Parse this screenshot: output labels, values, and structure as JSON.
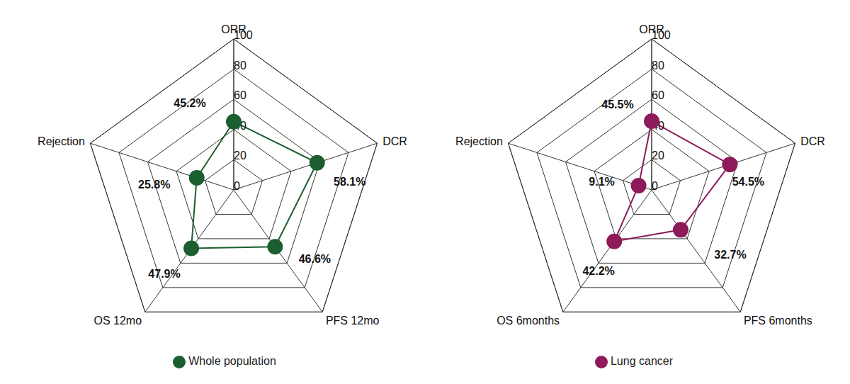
{
  "chart_data": [
    {
      "type": "radar",
      "categories": [
        "ORR",
        "DCR",
        "PFS 12mo",
        "OS 12mo",
        "Rejection"
      ],
      "series": [
        {
          "name": "Whole population",
          "color": "#1b5e2f",
          "values": [
            45.2,
            58.1,
            46.6,
            47.9,
            25.8
          ],
          "value_labels": [
            "45.2%",
            "58.1%",
            "46.6%",
            "47.9%",
            "25.8%"
          ],
          "marker": "circle"
        }
      ],
      "ylim": [
        0,
        100
      ],
      "yticks": [
        0,
        20,
        40,
        60,
        80,
        100
      ],
      "grid": true,
      "data_labels": true,
      "legend": "bottom"
    },
    {
      "type": "radar",
      "categories": [
        "ORR",
        "DCR",
        "PFS 6months",
        "OS 6months",
        "Rejection"
      ],
      "series": [
        {
          "name": "Lung cancer",
          "color": "#8e1a5a",
          "values": [
            45.5,
            54.5,
            32.7,
            42.2,
            9.1
          ],
          "value_labels": [
            "45.5%",
            "54.5%",
            "32.7%",
            "42.2%",
            "9.1%"
          ],
          "marker": "circle"
        }
      ],
      "ylim": [
        0,
        100
      ],
      "yticks": [
        0,
        20,
        40,
        60,
        80,
        100
      ],
      "grid": true,
      "data_labels": true,
      "legend": "bottom"
    }
  ]
}
